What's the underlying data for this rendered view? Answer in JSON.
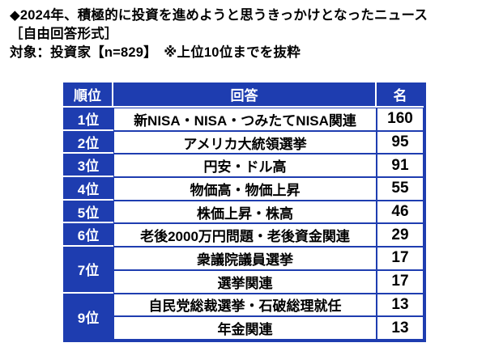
{
  "colors": {
    "table_blue": "#1e3db0",
    "cell_bg": "#ffffff",
    "header_text": "#ffffff",
    "body_text": "#000000"
  },
  "header": {
    "line1": "◆2024年、積極的に投資を進めようと思うきっかけとなったニュース",
    "line2": "［自由回答形式］",
    "line3": "対象：投資家【n=829】　※上位10位までを抜粋"
  },
  "table": {
    "columns": {
      "rank": "順位",
      "answer": "回答",
      "count": "名"
    },
    "rows": [
      {
        "rank": "1位",
        "answer": "新NISA・NISA・つみたてNISA関連",
        "count": "160"
      },
      {
        "rank": "2位",
        "answer": "アメリカ大統領選挙",
        "count": "95"
      },
      {
        "rank": "3位",
        "answer": "円安・ドル高",
        "count": "91"
      },
      {
        "rank": "4位",
        "answer": "物価高・物価上昇",
        "count": "55"
      },
      {
        "rank": "5位",
        "answer": "株価上昇・株高",
        "count": "46"
      },
      {
        "rank": "6位",
        "answer": "老後2000万円問題・老後資金関連",
        "count": "29"
      },
      {
        "rank": "7位",
        "answer": "衆議院議員選挙",
        "count": "17"
      },
      {
        "rank": null,
        "answer": "選挙関連",
        "count": "17"
      },
      {
        "rank": "9位",
        "answer": "自民党総裁選挙・石破総理就任",
        "count": "13"
      },
      {
        "rank": null,
        "answer": "年金関連",
        "count": "13"
      }
    ]
  },
  "chart_data": {
    "type": "table",
    "title": "◆2024年、積極的に投資を進めようと思うきっかけとなったニュース",
    "subtitle": "［自由回答形式］",
    "target_note": "対象：投資家【n=829】 ※上位10位までを抜粋",
    "sample_size": 829,
    "columns": [
      "順位",
      "回答",
      "名"
    ],
    "rows": [
      [
        "1位",
        "新NISA・NISA・つみたてNISA関連",
        160
      ],
      [
        "2位",
        "アメリカ大統領選挙",
        95
      ],
      [
        "3位",
        "円安・ドル高",
        91
      ],
      [
        "4位",
        "物価高・物価上昇",
        55
      ],
      [
        "5位",
        "株価上昇・株高",
        46
      ],
      [
        "6位",
        "老後2000万円問題・老後資金関連",
        29
      ],
      [
        "7位",
        "衆議院議員選挙",
        17
      ],
      [
        "7位",
        "選挙関連",
        17
      ],
      [
        "9位",
        "自民党総裁選挙・石破総理就任",
        13
      ],
      [
        "9位",
        "年金関連",
        13
      ]
    ]
  }
}
